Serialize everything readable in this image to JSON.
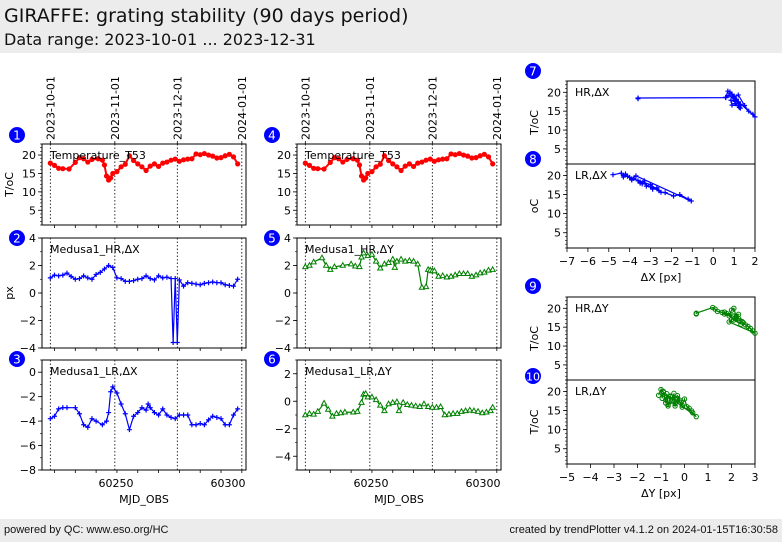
{
  "header": {
    "title": "GIRAFFE: grating stability (90 days period)",
    "subtitle": "Data range: 2023-10-01 ... 2023-12-31"
  },
  "footer": {
    "left": "powered by QC: www.eso.org/HC",
    "right": "created by trendPlotter v4.1.2 on 2024-01-15T16:30:58"
  },
  "colors": {
    "red": "#ff0000",
    "blue": "#0000ff",
    "green": "#008000",
    "badge": "#0000ff"
  },
  "chart_data": [
    {
      "id": 1,
      "type": "line",
      "column": 1,
      "row": 1,
      "label": "Temperature_T53",
      "ylabel": "T/oC",
      "color": "#ff0000",
      "marker": "circle",
      "ylim": [
        1,
        23
      ],
      "yticks": [
        5,
        10,
        15,
        20
      ],
      "date_ticks": [
        "2023-10-01",
        "2023-11-01",
        "2023-12-01",
        "2024-01-01"
      ],
      "date_tick_mjd": [
        60218,
        60249,
        60279,
        60310
      ],
      "xlim": [
        60214,
        60312
      ],
      "x": [
        60218,
        60220,
        60222,
        60224,
        60227,
        60230,
        60232,
        60234,
        60236,
        60238,
        60241,
        60243,
        60244,
        60245,
        60246,
        60247,
        60248,
        60250,
        60252,
        60254,
        60256,
        60258,
        60260,
        60262,
        60264,
        60266,
        60268,
        60270,
        60272,
        60274,
        60276,
        60278,
        60280,
        60282,
        60284,
        60286,
        60288,
        60290,
        60292,
        60294,
        60296,
        60298,
        60300,
        60302,
        60304,
        60306,
        60308
      ],
      "y": [
        17.8,
        17.2,
        16.4,
        16.3,
        16.2,
        18.0,
        19.3,
        19.0,
        18.1,
        18.8,
        19.0,
        18.6,
        17.3,
        14.3,
        13.2,
        13.8,
        15.0,
        15.5,
        16.8,
        17.5,
        19.8,
        18.5,
        17.6,
        16.8,
        15.8,
        17.0,
        17.6,
        16.9,
        17.8,
        18.1,
        18.6,
        18.9,
        18.3,
        18.7,
        18.9,
        19.0,
        20.3,
        20.1,
        20.4,
        20.0,
        19.7,
        19.2,
        19.3,
        19.8,
        20.2,
        19.5,
        17.6
      ]
    },
    {
      "id": 2,
      "type": "line",
      "column": 1,
      "row": 2,
      "label": "Medusa1_HR,ΔX",
      "ylabel": "px",
      "color": "#0000ff",
      "marker": "plus",
      "ylim": [
        -4,
        4
      ],
      "yticks": [
        -4,
        -2,
        0,
        2,
        4
      ],
      "xlim": [
        60214,
        60312
      ],
      "x": [
        60218,
        60220,
        60222,
        60224,
        60226,
        60228,
        60230,
        60232,
        60234,
        60236,
        60238,
        60240,
        60242,
        60244,
        60246,
        60248,
        60250,
        60252,
        60254,
        60256,
        60258,
        60260,
        60262,
        60264,
        60266,
        60268,
        60270,
        60272,
        60274,
        60276,
        60277,
        60278,
        60279,
        60280,
        60282,
        60284,
        60286,
        60288,
        60290,
        60292,
        60294,
        60296,
        60298,
        60300,
        60302,
        60304,
        60306,
        60308
      ],
      "y": [
        1.1,
        1.3,
        1.25,
        1.3,
        1.45,
        1.2,
        1.0,
        1.05,
        1.25,
        1.1,
        1.0,
        1.35,
        1.5,
        1.75,
        2.0,
        1.85,
        1.1,
        1.05,
        0.85,
        0.85,
        0.9,
        1.0,
        1.05,
        1.25,
        1.05,
        0.95,
        1.25,
        1.1,
        1.15,
        1.05,
        -3.6,
        1.05,
        -3.6,
        0.95,
        0.5,
        0.75,
        0.7,
        0.65,
        0.6,
        0.7,
        0.75,
        0.8,
        0.75,
        0.75,
        0.6,
        0.55,
        0.5,
        1.0
      ]
    },
    {
      "id": 3,
      "type": "line",
      "column": 1,
      "row": 3,
      "label": "Medusa1_LR,ΔX",
      "ylabel": "",
      "color": "#0000ff",
      "marker": "plus",
      "ylim": [
        -8,
        1
      ],
      "yticks": [
        -8,
        -6,
        -4,
        -2,
        0
      ],
      "xlim": [
        60214,
        60312
      ],
      "xticks": [
        60250,
        60300
      ],
      "xlabel": "MJD_OBS",
      "x": [
        60218,
        60220,
        60222,
        60224,
        60226,
        60230,
        60232,
        60234,
        60236,
        60238,
        60240,
        60243,
        60245,
        60246,
        60247,
        60248,
        60250,
        60252,
        60254,
        60256,
        60258,
        60260,
        60262,
        60264,
        60265,
        60266,
        60268,
        60270,
        60272,
        60274,
        60276,
        60278,
        60280,
        60282,
        60284,
        60286,
        60288,
        60290,
        60292,
        60294,
        60296,
        60298,
        60300,
        60302,
        60304,
        60306,
        60308
      ],
      "y": [
        -3.8,
        -3.6,
        -3.0,
        -2.9,
        -2.9,
        -2.9,
        -3.4,
        -4.3,
        -4.5,
        -3.8,
        -4.0,
        -4.3,
        -4.0,
        -3.3,
        -1.6,
        -1.2,
        -1.7,
        -2.6,
        -3.4,
        -4.7,
        -3.6,
        -3.3,
        -2.9,
        -3.1,
        -2.6,
        -2.9,
        -3.3,
        -3.5,
        -3.0,
        -3.5,
        -3.7,
        -3.8,
        -3.5,
        -3.5,
        -3.5,
        -4.3,
        -4.3,
        -4.2,
        -4.3,
        -3.9,
        -3.6,
        -3.7,
        -3.8,
        -4.3,
        -4.3,
        -3.5,
        -3.0
      ]
    },
    {
      "id": 4,
      "type": "line",
      "column": 2,
      "row": 1,
      "label": "Temperature_T53",
      "ylabel": "",
      "color": "#ff0000",
      "marker": "circle",
      "ylim": [
        1,
        23
      ],
      "yticks": [
        5,
        10,
        15,
        20
      ],
      "date_ticks": [
        "2023-10-01",
        "2023-11-01",
        "2023-12-01",
        "2024-01-01"
      ],
      "date_tick_mjd": [
        60218,
        60249,
        60279,
        60310
      ],
      "xlim": [
        60214,
        60312
      ],
      "x": [
        60218,
        60220,
        60222,
        60224,
        60227,
        60230,
        60232,
        60234,
        60236,
        60238,
        60241,
        60243,
        60244,
        60245,
        60246,
        60247,
        60248,
        60250,
        60252,
        60254,
        60256,
        60258,
        60260,
        60262,
        60264,
        60266,
        60268,
        60270,
        60272,
        60274,
        60276,
        60278,
        60280,
        60282,
        60284,
        60286,
        60288,
        60290,
        60292,
        60294,
        60296,
        60298,
        60300,
        60302,
        60304,
        60306,
        60308
      ],
      "y": [
        17.8,
        17.2,
        16.4,
        16.3,
        16.2,
        18.0,
        19.3,
        19.0,
        18.1,
        18.8,
        19.0,
        18.6,
        17.3,
        14.3,
        13.2,
        13.8,
        15.0,
        15.5,
        16.8,
        17.5,
        19.8,
        18.5,
        17.6,
        16.8,
        15.8,
        17.0,
        17.6,
        16.9,
        17.8,
        18.1,
        18.6,
        18.9,
        18.3,
        18.7,
        18.9,
        19.0,
        20.3,
        20.1,
        20.4,
        20.0,
        19.7,
        19.2,
        19.3,
        19.8,
        20.2,
        19.5,
        17.6
      ]
    },
    {
      "id": 5,
      "type": "line",
      "column": 2,
      "row": 2,
      "label": "Medusa1_HR,ΔY",
      "ylabel": "",
      "color": "#008000",
      "marker": "triangle",
      "ylim": [
        -4,
        4
      ],
      "yticks": [
        -4,
        -2,
        0,
        2,
        4
      ],
      "xlim": [
        60214,
        60312
      ],
      "x": [
        60218,
        60220,
        60222,
        60226,
        60228,
        60230,
        60232,
        60236,
        60240,
        60242,
        60244,
        60245,
        60246,
        60248,
        60250,
        60252,
        60254,
        60256,
        60258,
        60260,
        60261,
        60262,
        60264,
        60266,
        60268,
        60270,
        60272,
        60274,
        60276,
        60277,
        60278,
        60279,
        60280,
        60282,
        60284,
        60286,
        60288,
        60290,
        60292,
        60294,
        60296,
        60298,
        60300,
        60302,
        60304,
        60306,
        60308
      ],
      "y": [
        1.9,
        2.0,
        2.25,
        2.55,
        2.0,
        1.7,
        1.9,
        2.0,
        2.1,
        1.95,
        1.9,
        2.6,
        2.9,
        2.7,
        2.8,
        2.3,
        1.8,
        2.1,
        2.2,
        2.45,
        1.85,
        2.3,
        2.45,
        2.3,
        2.35,
        2.3,
        2.1,
        0.4,
        0.45,
        1.7,
        1.65,
        1.6,
        1.6,
        1.2,
        1.25,
        1.15,
        1.2,
        1.3,
        1.4,
        1.4,
        1.4,
        1.2,
        1.3,
        1.45,
        1.5,
        1.65,
        1.7
      ]
    },
    {
      "id": 6,
      "type": "line",
      "column": 2,
      "row": 3,
      "label": "Medusa1_LR,ΔY",
      "ylabel": "",
      "color": "#008000",
      "marker": "triangle",
      "ylim": [
        -5,
        3
      ],
      "yticks": [
        -4,
        -2,
        0,
        2
      ],
      "xlim": [
        60214,
        60312
      ],
      "xticks": [
        60250,
        60300
      ],
      "xlabel": "MJD_OBS",
      "x": [
        60218,
        60220,
        60222,
        60224,
        60227,
        60229,
        60231,
        60233,
        60235,
        60237,
        60241,
        60243,
        60245,
        60246,
        60247,
        60248,
        60250,
        60252,
        60254,
        60256,
        60258,
        60260,
        60262,
        60263,
        60265,
        60267,
        60269,
        60271,
        60273,
        60275,
        60277,
        60279,
        60281,
        60283,
        60285,
        60287,
        60289,
        60291,
        60293,
        60295,
        60297,
        60299,
        60301,
        60303,
        60305,
        60307,
        60308
      ],
      "y": [
        -1.0,
        -0.9,
        -0.95,
        -0.75,
        -0.15,
        -0.6,
        -1.1,
        -0.9,
        -0.85,
        -0.8,
        -0.8,
        -0.75,
        -0.1,
        0.5,
        0.55,
        0.3,
        0.3,
        0.1,
        -0.3,
        -0.7,
        -0.2,
        -0.1,
        -0.05,
        -0.7,
        -0.1,
        -0.25,
        -0.3,
        -0.35,
        -0.4,
        -0.2,
        -0.4,
        -0.45,
        -0.45,
        -0.4,
        -1.0,
        -0.95,
        -0.9,
        -0.9,
        -0.75,
        -0.7,
        -0.65,
        -0.7,
        -0.75,
        -0.85,
        -0.8,
        -0.7,
        -0.45
      ]
    },
    {
      "id": 7,
      "type": "scatter",
      "column": 3,
      "row": 1,
      "label": "HR,ΔX",
      "ylabel": "T/oC",
      "color": "#0000ff",
      "marker": "plus",
      "xlim": [
        -7,
        2
      ],
      "ylim": [
        1,
        23
      ],
      "yticks": [
        5,
        10,
        15,
        20
      ],
      "x": [
        -3.6,
        -3.6,
        0.6,
        0.7,
        0.8,
        0.9,
        1.0,
        1.1,
        1.2,
        1.3,
        1.25,
        1.05,
        0.95,
        1.2,
        1.5,
        1.7,
        1.9,
        2.0,
        1.1,
        1.0,
        1.05,
        0.85,
        0.9,
        1.25,
        1.3,
        1.15,
        0.75,
        0.6
      ],
      "y": [
        18.3,
        18.5,
        18.6,
        20.3,
        20.1,
        19.5,
        19.0,
        18.2,
        17.5,
        16.8,
        16.0,
        17.0,
        18.8,
        19.3,
        16.5,
        15.0,
        14.2,
        13.5,
        18.0,
        18.9,
        17.6,
        17.9,
        16.6,
        16.4,
        15.8,
        17.4,
        19.2,
        18.7
      ]
    },
    {
      "id": 8,
      "type": "scatter",
      "column": 3,
      "row": 2,
      "label": "LR,ΔX",
      "ylabel": "oC",
      "color": "#0000ff",
      "marker": "plus",
      "xlim": [
        -7,
        2
      ],
      "ylim": [
        1,
        23
      ],
      "yticks": [
        5,
        10,
        15,
        20
      ],
      "xticks": [
        -7,
        -6,
        -5,
        -4,
        -3,
        -2,
        -1,
        0,
        1,
        2
      ],
      "xlabel": "ΔX [px]",
      "x": [
        -4.8,
        -4.4,
        -4.3,
        -4.2,
        -4.0,
        -3.9,
        -3.8,
        -3.6,
        -3.5,
        -3.4,
        -3.3,
        -3.2,
        -3.0,
        -2.9,
        -2.7,
        -2.5,
        -2.3,
        -1.9,
        -1.6,
        -1.2,
        -1.05,
        -3.7,
        -3.9,
        -4.1,
        -4.3,
        -3.0,
        -2.6,
        -3.5
      ],
      "y": [
        20.2,
        20.6,
        19.6,
        20.4,
        19.5,
        18.8,
        19.2,
        18.6,
        18.0,
        17.8,
        18.6,
        17.2,
        17.0,
        16.4,
        16.8,
        15.6,
        15.5,
        14.6,
        15.0,
        13.8,
        13.3,
        19.9,
        19.1,
        19.8,
        20.0,
        17.6,
        16.0,
        18.3
      ]
    },
    {
      "id": 9,
      "type": "scatter",
      "column": 3,
      "row": 3,
      "label": "HR,ΔY",
      "ylabel": "T/oC",
      "color": "#008000",
      "marker": "circle-open",
      "xlim": [
        -5,
        3
      ],
      "ylim": [
        1,
        23
      ],
      "yticks": [
        5,
        10,
        15,
        20
      ],
      "x": [
        0.5,
        0.5,
        1.2,
        1.3,
        1.4,
        1.6,
        1.7,
        1.9,
        2.0,
        2.1,
        2.2,
        2.3,
        2.35,
        2.45,
        2.5,
        2.6,
        2.7,
        2.8,
        2.9,
        3.0,
        1.9,
        2.0,
        2.3,
        1.8,
        2.4,
        2.1,
        1.7,
        2.2
      ],
      "y": [
        18.5,
        18.7,
        20.2,
        19.8,
        19.2,
        18.9,
        18.5,
        18.0,
        19.5,
        20.0,
        17.8,
        17.3,
        16.8,
        16.5,
        16.2,
        15.6,
        15.2,
        14.7,
        14.0,
        13.4,
        16.4,
        17.0,
        18.4,
        18.6,
        15.8,
        16.9,
        19.0,
        17.5
      ]
    },
    {
      "id": 10,
      "type": "scatter",
      "column": 3,
      "row": 4,
      "label": "LR,ΔY",
      "ylabel": "T/oC",
      "color": "#008000",
      "marker": "circle-open",
      "xlim": [
        -5,
        3
      ],
      "ylim": [
        1,
        23
      ],
      "yticks": [
        5,
        10,
        15,
        20
      ],
      "xticks": [
        -5,
        -4,
        -3,
        -2,
        -1,
        0,
        1,
        2,
        3
      ],
      "xlabel": "ΔY [px]",
      "x": [
        -1.1,
        -1.0,
        -0.95,
        -0.9,
        -0.8,
        -0.75,
        -0.7,
        -0.6,
        -0.5,
        -0.45,
        -0.4,
        -0.3,
        -0.2,
        -0.1,
        0.0,
        0.1,
        0.2,
        0.35,
        0.5,
        -0.9,
        -0.8,
        -0.6,
        -0.4,
        -0.2,
        -0.7,
        -0.3,
        -0.1,
        0.3
      ],
      "y": [
        19.0,
        20.5,
        18.2,
        20.0,
        17.0,
        19.4,
        16.2,
        18.6,
        17.6,
        19.5,
        16.8,
        18.2,
        17.2,
        16.4,
        18.0,
        16.0,
        15.6,
        14.4,
        13.4,
        19.8,
        17.8,
        18.8,
        16.2,
        17.7,
        16.6,
        18.9,
        15.9,
        14.9
      ]
    }
  ],
  "badges": [
    "1",
    "2",
    "3",
    "4",
    "5",
    "6",
    "7",
    "8",
    "9",
    "10"
  ]
}
